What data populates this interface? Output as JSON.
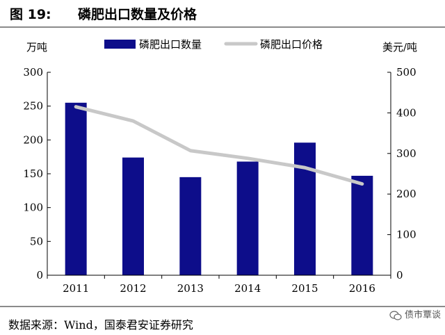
{
  "figure": {
    "number_label": "图 19:",
    "title": "磷肥出口数量及价格"
  },
  "source": "数据来源：Wind，国泰君安证券研究",
  "watermark": "债市覃谈",
  "colors": {
    "bar": "#0d0d8a",
    "line": "#c8c8c8",
    "axis": "#000000",
    "rule": "#8a8a8a"
  },
  "chart_data": {
    "type": "bar",
    "categories": [
      "2011",
      "2012",
      "2013",
      "2014",
      "2015",
      "2016"
    ],
    "series": [
      {
        "name": "磷肥出口数量",
        "type": "bar",
        "axis": "left",
        "values": [
          255,
          174,
          145,
          168,
          196,
          147
        ]
      },
      {
        "name": "磷肥出口价格",
        "type": "line",
        "axis": "right",
        "values": [
          415,
          380,
          307,
          288,
          265,
          225
        ]
      }
    ],
    "y_left": {
      "label": "万吨",
      "ylim": [
        0,
        300
      ],
      "ticks": [
        "0",
        "50",
        "100",
        "150",
        "200",
        "250",
        "300"
      ]
    },
    "y_right": {
      "label": "美元/吨",
      "ylim": [
        0,
        500
      ],
      "ticks": [
        "0",
        "100",
        "200",
        "300",
        "400",
        "500"
      ]
    },
    "legend_position": "top-center",
    "grid": false
  }
}
